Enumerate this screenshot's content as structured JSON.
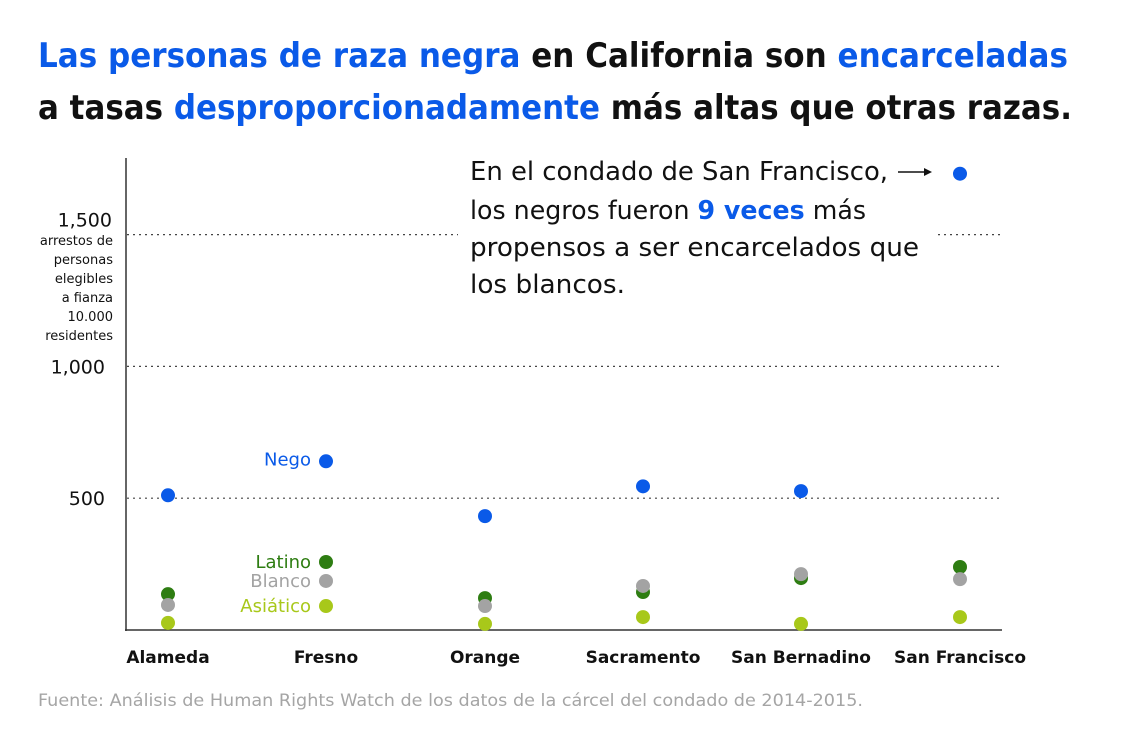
{
  "title": {
    "line1": [
      {
        "text": "Las personas de raza negra",
        "highlight": true
      },
      {
        "text": " en California son ",
        "highlight": false
      },
      {
        "text": "encarceladas",
        "highlight": true
      }
    ],
    "line2": [
      {
        "text": "a tasas ",
        "highlight": false
      },
      {
        "text": "desproporcionadamente",
        "highlight": true
      },
      {
        "text": " más altas que otras razas.",
        "highlight": false
      }
    ]
  },
  "annotation": {
    "line1": "En el condado de San Francisco,",
    "line2_pre": "los negros fueron ",
    "line2_hl": "9 veces",
    "line2_post": " más",
    "line3": "propensos a ser encarcelados que",
    "line4": "los blancos."
  },
  "source": "Fuente: Análisis de Human Rights Watch de los datos de la cárcel del condado de 2014-2015.",
  "colors": {
    "accent": "#0a5ae8",
    "Nego": "#0a5ae8",
    "Latino": "#2e7d12",
    "Blanco": "#a3a3a3",
    "Asiático": "#a8c81a"
  },
  "chart_data": {
    "type": "scatter",
    "title": "Las personas de raza negra en California son encarceladas a tasas desproporcionadamente más altas que otras razas.",
    "ylabel": [
      "arrestos de",
      "personas",
      "elegibles",
      "a fianza",
      "10.000",
      "residentes"
    ],
    "ylim": [
      0,
      1800
    ],
    "yticks": [
      {
        "value": 500,
        "label": "500"
      },
      {
        "value": 1000,
        "label": "1,000"
      },
      {
        "value": 1500,
        "label": "1,500"
      }
    ],
    "grid": "horizontal dotted",
    "legend": "inline next to Fresno",
    "categories": [
      "Alameda",
      "Fresno",
      "Orange",
      "Sacramento",
      "San Bernadino",
      "San Francisco"
    ],
    "series": [
      {
        "name": "Nego",
        "values": [
          511,
          640,
          432,
          545,
          527,
          1731
        ]
      },
      {
        "name": "Latino",
        "values": [
          136,
          258,
          121,
          144,
          197,
          239
        ]
      },
      {
        "name": "Blanco",
        "values": [
          95,
          186,
          91,
          167,
          212,
          193
        ]
      },
      {
        "name": "Asiático",
        "values": [
          27,
          91,
          23,
          49,
          23,
          49
        ]
      }
    ]
  }
}
